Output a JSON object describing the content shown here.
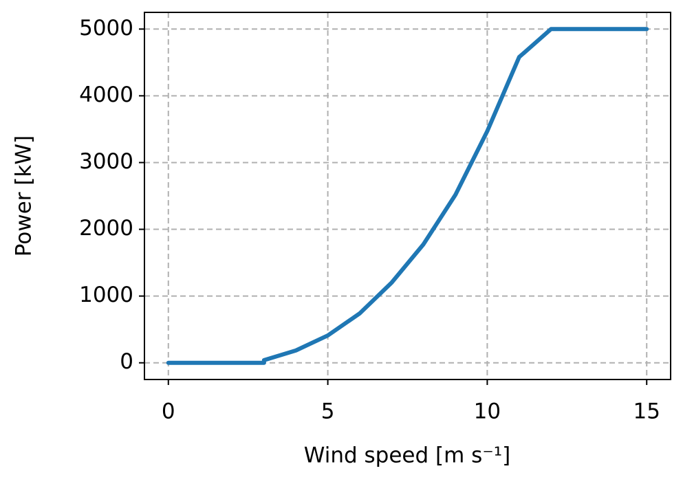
{
  "chart_data": {
    "type": "line",
    "x_label": "Wind speed [m s⁻¹]",
    "y_label": "Power [kW]",
    "x": [
      0,
      1,
      2,
      3,
      3,
      4,
      5,
      6,
      7,
      8,
      9,
      10,
      11,
      12,
      13,
      14,
      15
    ],
    "series": [
      {
        "name": "Power",
        "color": "#1f77b4",
        "values": [
          0,
          0,
          0,
          0,
          40,
          185,
          410,
          740,
          1200,
          1776,
          2515,
          3470,
          4580,
          5000,
          5000,
          5000,
          5000
        ]
      }
    ],
    "xlim": [
      -0.75,
      15.75
    ],
    "xticks": [
      0,
      5,
      10,
      15
    ],
    "ylim": [
      -250,
      5250
    ],
    "yticks": [
      0,
      1000,
      2000,
      3000,
      4000,
      5000
    ],
    "grid": true
  }
}
